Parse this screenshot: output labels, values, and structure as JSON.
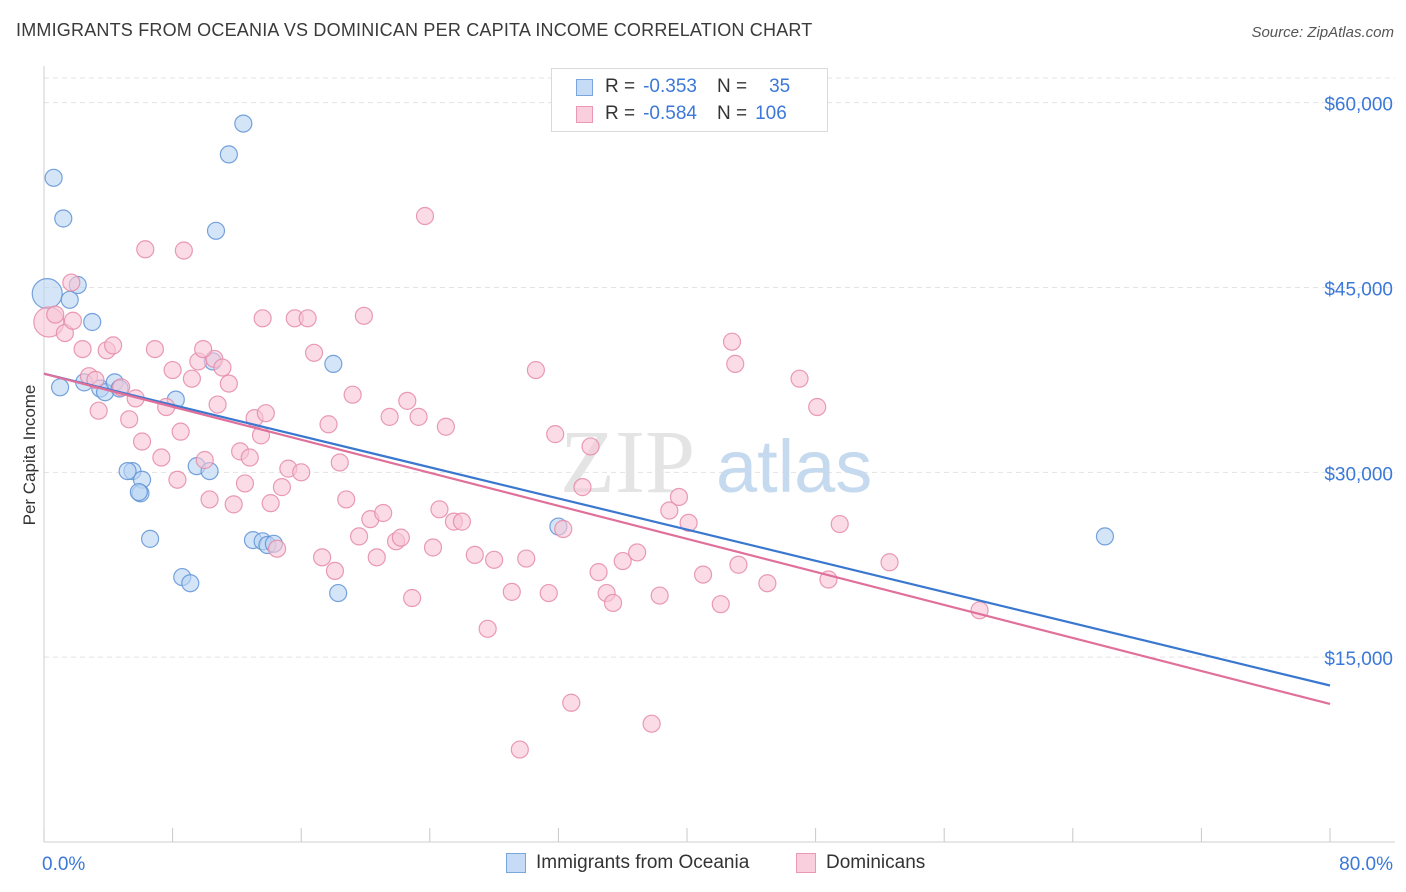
{
  "header": {
    "title": "IMMIGRANTS FROM OCEANIA VS DOMINICAN PER CAPITA INCOME CORRELATION CHART",
    "source": "Source: ZipAtlas.com"
  },
  "watermark": {
    "zip": "ZIP",
    "atlas": "atlas"
  },
  "legend": {
    "series": [
      {
        "r_label": "R =",
        "r_value": "-0.353",
        "n_label": "N =",
        "n_value": "35",
        "color": "#a9c8f0",
        "edge": "#6f9fdc"
      },
      {
        "r_label": "R =",
        "r_value": "-0.584",
        "n_label": "N =",
        "n_value": "106",
        "color": "#f6bdd0",
        "edge": "#e88aa8"
      }
    ]
  },
  "colors": {
    "oceania_fill": "#b9d3f3",
    "oceania_edge": "#5f93d6",
    "oceania_line": "#3a78d0",
    "dominican_fill": "#f8c5d5",
    "dominican_edge": "#e58aa8",
    "dominican_line": "#e0709a",
    "axis_label": "#3b78d8",
    "grid": "#e3e3e3"
  },
  "chart_data": {
    "type": "scatter",
    "title": "IMMIGRANTS FROM OCEANIA VS DOMINICAN PER CAPITA INCOME CORRELATION CHART",
    "xlabel": "",
    "ylabel": "Per Capita Income",
    "xlim": [
      0,
      80
    ],
    "ylim": [
      0,
      62000
    ],
    "x_tick_labels": [
      "0.0%",
      "80.0%"
    ],
    "y_ticks": [
      15000,
      30000,
      45000,
      60000
    ],
    "y_tick_labels": [
      "$15,000",
      "$30,000",
      "$45,000",
      "$60,000"
    ],
    "grid": true,
    "legend_position": "top-center",
    "series": [
      {
        "name": "Immigrants from Oceania",
        "r": -0.353,
        "n": 35,
        "trend": {
          "x": [
            0,
            80
          ],
          "y": [
            38000,
            12700
          ]
        },
        "points": [
          [
            0.2,
            44500
          ],
          [
            0.6,
            53900
          ],
          [
            1.2,
            50600
          ],
          [
            1.6,
            44000
          ],
          [
            2.1,
            45200
          ],
          [
            3.0,
            42200
          ],
          [
            2.5,
            37300
          ],
          [
            3.5,
            36800
          ],
          [
            3.8,
            36500
          ],
          [
            4.4,
            37300
          ],
          [
            4.7,
            36800
          ],
          [
            5.5,
            30100
          ],
          [
            5.2,
            30100
          ],
          [
            6.1,
            29400
          ],
          [
            6.0,
            28300
          ],
          [
            5.9,
            28400
          ],
          [
            6.6,
            24600
          ],
          [
            8.2,
            35900
          ],
          [
            8.6,
            21500
          ],
          [
            9.1,
            21000
          ],
          [
            9.5,
            30500
          ],
          [
            10.3,
            30100
          ],
          [
            10.5,
            39000
          ],
          [
            10.7,
            49600
          ],
          [
            11.5,
            55800
          ],
          [
            12.4,
            58300
          ],
          [
            13.0,
            24500
          ],
          [
            13.6,
            24400
          ],
          [
            13.9,
            24100
          ],
          [
            14.3,
            24200
          ],
          [
            18.0,
            38800
          ],
          [
            18.3,
            20200
          ],
          [
            32.0,
            25600
          ],
          [
            66.0,
            24800
          ],
          [
            1.0,
            36900
          ]
        ]
      },
      {
        "name": "Dominicans",
        "r": -0.584,
        "n": 106,
        "trend": {
          "x": [
            0,
            80
          ],
          "y": [
            38000,
            11200
          ]
        },
        "points": [
          [
            0.3,
            42200
          ],
          [
            0.7,
            42800
          ],
          [
            1.3,
            41300
          ],
          [
            1.7,
            45400
          ],
          [
            2.4,
            40000
          ],
          [
            2.8,
            37800
          ],
          [
            3.2,
            37500
          ],
          [
            3.4,
            35000
          ],
          [
            3.9,
            39900
          ],
          [
            4.3,
            40300
          ],
          [
            4.8,
            36900
          ],
          [
            5.3,
            34300
          ],
          [
            5.7,
            36000
          ],
          [
            6.3,
            48100
          ],
          [
            6.1,
            32500
          ],
          [
            6.9,
            40000
          ],
          [
            7.3,
            31200
          ],
          [
            7.6,
            35300
          ],
          [
            8.0,
            38300
          ],
          [
            8.3,
            29400
          ],
          [
            8.5,
            33300
          ],
          [
            8.7,
            48000
          ],
          [
            9.2,
            37600
          ],
          [
            9.6,
            39000
          ],
          [
            10.0,
            31000
          ],
          [
            10.3,
            27800
          ],
          [
            10.6,
            39200
          ],
          [
            10.8,
            35500
          ],
          [
            11.1,
            38500
          ],
          [
            11.5,
            37200
          ],
          [
            11.8,
            27400
          ],
          [
            12.2,
            31700
          ],
          [
            12.5,
            29100
          ],
          [
            12.8,
            31200
          ],
          [
            13.1,
            34400
          ],
          [
            13.5,
            33000
          ],
          [
            13.8,
            34800
          ],
          [
            14.1,
            27500
          ],
          [
            14.5,
            23800
          ],
          [
            14.8,
            28800
          ],
          [
            15.2,
            30300
          ],
          [
            15.6,
            42500
          ],
          [
            16.0,
            30000
          ],
          [
            16.4,
            42500
          ],
          [
            16.8,
            39700
          ],
          [
            17.3,
            23100
          ],
          [
            17.7,
            33900
          ],
          [
            18.1,
            22000
          ],
          [
            18.4,
            30800
          ],
          [
            18.8,
            27800
          ],
          [
            19.2,
            36300
          ],
          [
            19.6,
            24800
          ],
          [
            19.9,
            42700
          ],
          [
            20.3,
            26200
          ],
          [
            20.7,
            23100
          ],
          [
            21.1,
            26700
          ],
          [
            21.5,
            34500
          ],
          [
            21.9,
            24400
          ],
          [
            22.2,
            24700
          ],
          [
            22.6,
            35800
          ],
          [
            22.9,
            19800
          ],
          [
            23.3,
            34500
          ],
          [
            23.7,
            50800
          ],
          [
            24.2,
            23900
          ],
          [
            24.6,
            27000
          ],
          [
            25.0,
            33700
          ],
          [
            25.5,
            26000
          ],
          [
            26.0,
            26000
          ],
          [
            26.8,
            23300
          ],
          [
            27.6,
            17300
          ],
          [
            28.0,
            22900
          ],
          [
            29.1,
            20300
          ],
          [
            29.6,
            7500
          ],
          [
            30.0,
            23000
          ],
          [
            30.6,
            38300
          ],
          [
            31.4,
            20200
          ],
          [
            31.8,
            33100
          ],
          [
            32.3,
            25400
          ],
          [
            32.8,
            11300
          ],
          [
            33.5,
            28800
          ],
          [
            34.0,
            32100
          ],
          [
            34.5,
            21900
          ],
          [
            35.0,
            20200
          ],
          [
            35.4,
            19400
          ],
          [
            36.0,
            22800
          ],
          [
            36.9,
            23500
          ],
          [
            37.8,
            9600
          ],
          [
            38.3,
            20000
          ],
          [
            38.9,
            26900
          ],
          [
            39.5,
            28000
          ],
          [
            40.1,
            25900
          ],
          [
            41.0,
            21700
          ],
          [
            42.1,
            19300
          ],
          [
            42.8,
            40600
          ],
          [
            43.2,
            22500
          ],
          [
            43.0,
            38800
          ],
          [
            45.0,
            21000
          ],
          [
            47.0,
            37600
          ],
          [
            48.1,
            35300
          ],
          [
            48.8,
            21300
          ],
          [
            49.5,
            25800
          ],
          [
            52.6,
            22700
          ],
          [
            58.2,
            18800
          ],
          [
            1.8,
            42300
          ],
          [
            9.9,
            40000
          ],
          [
            13.6,
            42500
          ]
        ]
      }
    ]
  },
  "bottom_legend": {
    "items": [
      {
        "label": "Immigrants from Oceania"
      },
      {
        "label": "Dominicans"
      }
    ]
  }
}
